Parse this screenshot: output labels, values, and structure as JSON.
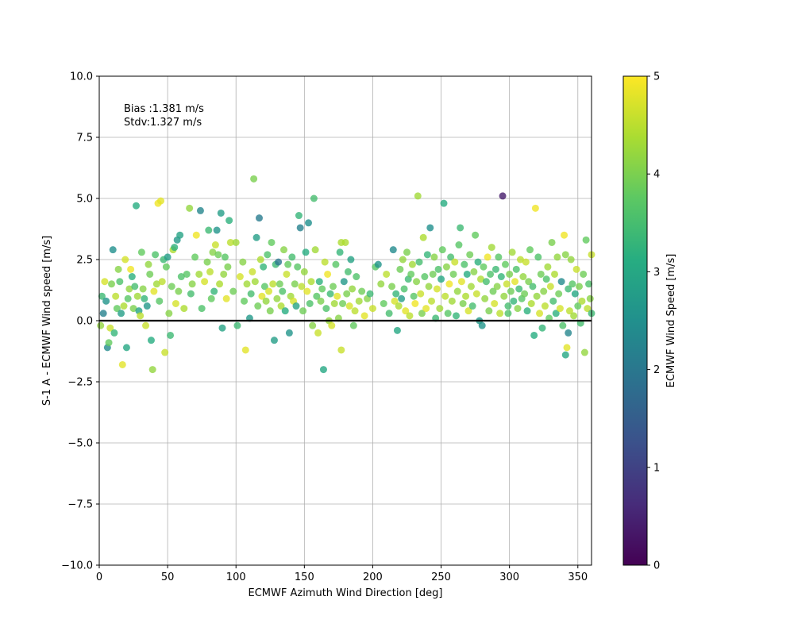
{
  "chart_data": {
    "type": "scatter",
    "title": "",
    "xlabel": "ECMWF Azimuth Wind Direction [deg]",
    "ylabel": "S-1 A - ECMWF Wind speed [m/s]",
    "xlim": [
      0,
      360
    ],
    "ylim": [
      -10,
      10
    ],
    "xticks": [
      "0",
      "50",
      "100",
      "150",
      "200",
      "250",
      "300",
      "350"
    ],
    "yticks": [
      "−10.0",
      "−7.5",
      "−5.0",
      "−2.5",
      "0.0",
      "2.5",
      "5.0",
      "7.5",
      "10.0"
    ],
    "grid": true,
    "reference_line_y": 0,
    "annotations": [
      "Bias :1.381 m/s",
      "Stdv:1.327 m/s"
    ],
    "colorbar": {
      "label": "ECMWF Wind Speed [m/s]",
      "range": [
        0,
        5
      ],
      "ticks": [
        "0",
        "1",
        "2",
        "3",
        "4",
        "5"
      ],
      "colormap": "viridis"
    },
    "points": [
      [
        1,
        -0.2,
        4.2
      ],
      [
        2,
        1.0,
        3.4
      ],
      [
        3,
        0.3,
        2.2
      ],
      [
        4,
        1.6,
        4.7
      ],
      [
        5,
        0.8,
        2.6
      ],
      [
        6,
        -1.1,
        2.4
      ],
      [
        7,
        -0.9,
        3.8
      ],
      [
        8,
        -0.3,
        4.6
      ],
      [
        9,
        1.5,
        4.0
      ],
      [
        10,
        2.9,
        2.5
      ],
      [
        11,
        -0.5,
        3.3
      ],
      [
        12,
        1.0,
        4.5
      ],
      [
        13,
        0.5,
        3.8
      ],
      [
        14,
        2.1,
        4.1
      ],
      [
        15,
        1.6,
        3.6
      ],
      [
        16,
        0.3,
        2.8
      ],
      [
        17,
        -1.8,
        4.8
      ],
      [
        18,
        0.6,
        4.4
      ],
      [
        19,
        2.5,
        4.7
      ],
      [
        20,
        -1.1,
        3.0
      ],
      [
        21,
        0.9,
        3.7
      ],
      [
        22,
        1.3,
        4.2
      ],
      [
        23,
        2.1,
        4.9
      ],
      [
        24,
        1.8,
        3.2
      ],
      [
        25,
        0.5,
        4.0
      ],
      [
        26,
        1.4,
        3.5
      ],
      [
        27,
        4.7,
        3.1
      ],
      [
        28,
        1.0,
        4.3
      ],
      [
        29,
        0.4,
        2.9
      ],
      [
        30,
        0.2,
        4.5
      ],
      [
        31,
        2.8,
        3.8
      ],
      [
        32,
        1.3,
        4.1
      ],
      [
        33,
        0.9,
        3.3
      ],
      [
        34,
        -0.2,
        4.6
      ],
      [
        35,
        0.6,
        2.7
      ],
      [
        36,
        2.3,
        4.2
      ],
      [
        37,
        1.9,
        3.9
      ],
      [
        38,
        -0.8,
        3.1
      ],
      [
        39,
        -2.0,
        4.2
      ],
      [
        40,
        1.2,
        4.8
      ],
      [
        41,
        2.7,
        3.6
      ],
      [
        42,
        1.5,
        4.3
      ],
      [
        43,
        4.8,
        4.9
      ],
      [
        44,
        0.8,
        3.7
      ],
      [
        45,
        4.9,
        4.8
      ],
      [
        46,
        1.6,
        4.5
      ],
      [
        47,
        2.5,
        3.4
      ],
      [
        48,
        -1.3,
        4.6
      ],
      [
        49,
        2.2,
        3.8
      ],
      [
        50,
        2.6,
        2.8
      ],
      [
        51,
        0.3,
        4.1
      ],
      [
        52,
        -0.6,
        3.4
      ],
      [
        53,
        1.4,
        3.9
      ],
      [
        54,
        2.9,
        4.4
      ],
      [
        55,
        3.0,
        3.2
      ],
      [
        56,
        0.7,
        4.7
      ],
      [
        57,
        3.3,
        2.7
      ],
      [
        58,
        1.2,
        4.0
      ],
      [
        59,
        3.5,
        2.9
      ],
      [
        60,
        1.8,
        3.6
      ],
      [
        62,
        0.5,
        4.4
      ],
      [
        64,
        1.9,
        3.7
      ],
      [
        66,
        4.6,
        4.2
      ],
      [
        67,
        1.1,
        3.5
      ],
      [
        68,
        1.5,
        4.1
      ],
      [
        70,
        2.6,
        3.8
      ],
      [
        71,
        3.5,
        4.9
      ],
      [
        73,
        1.9,
        4.3
      ],
      [
        74,
        4.5,
        2.3
      ],
      [
        75,
        0.5,
        3.6
      ],
      [
        77,
        1.6,
        4.7
      ],
      [
        79,
        2.4,
        4.0
      ],
      [
        80,
        3.7,
        3.4
      ],
      [
        81,
        2.0,
        4.5
      ],
      [
        82,
        0.9,
        3.8
      ],
      [
        83,
        2.8,
        4.1
      ],
      [
        84,
        1.2,
        3.3
      ],
      [
        85,
        3.1,
        4.6
      ],
      [
        86,
        3.7,
        2.6
      ],
      [
        87,
        2.7,
        3.9
      ],
      [
        88,
        1.5,
        4.4
      ],
      [
        89,
        4.4,
        2.8
      ],
      [
        90,
        -0.3,
        2.9
      ],
      [
        91,
        1.9,
        4.2
      ],
      [
        92,
        2.6,
        3.7
      ],
      [
        93,
        0.9,
        4.8
      ],
      [
        94,
        2.2,
        4.0
      ],
      [
        95,
        4.1,
        3.2
      ],
      [
        96,
        3.2,
        4.5
      ],
      [
        98,
        1.2,
        3.9
      ],
      [
        100,
        3.2,
        4.3
      ],
      [
        101,
        -0.2,
        3.4
      ],
      [
        103,
        1.8,
        4.7
      ],
      [
        105,
        2.4,
        4.1
      ],
      [
        106,
        0.8,
        3.8
      ],
      [
        107,
        -1.2,
        4.8
      ],
      [
        108,
        1.5,
        4.3
      ],
      [
        110,
        0.1,
        2.7
      ],
      [
        111,
        1.1,
        3.5
      ],
      [
        112,
        2.0,
        4.6
      ],
      [
        113,
        5.8,
        4.0
      ],
      [
        114,
        1.6,
        4.3
      ],
      [
        115,
        3.4,
        2.8
      ],
      [
        116,
        0.6,
        3.9
      ],
      [
        117,
        4.2,
        2.1
      ],
      [
        118,
        2.5,
        4.4
      ],
      [
        119,
        1.0,
        4.8
      ],
      [
        120,
        2.2,
        3.3
      ],
      [
        121,
        1.4,
        3.7
      ],
      [
        122,
        0.8,
        4.2
      ],
      [
        123,
        2.7,
        3.6
      ],
      [
        124,
        1.2,
        4.7
      ],
      [
        125,
        0.4,
        4.0
      ],
      [
        126,
        3.2,
        3.8
      ],
      [
        127,
        1.5,
        4.5
      ],
      [
        128,
        -0.8,
        2.8
      ],
      [
        129,
        2.3,
        3.4
      ],
      [
        130,
        0.9,
        4.2
      ],
      [
        131,
        2.4,
        2.0
      ],
      [
        132,
        1.5,
        3.9
      ],
      [
        133,
        0.6,
        4.4
      ],
      [
        134,
        1.2,
        3.6
      ],
      [
        135,
        2.9,
        4.1
      ],
      [
        136,
        0.4,
        3.1
      ],
      [
        137,
        1.9,
        4.6
      ],
      [
        138,
        2.3,
        3.8
      ],
      [
        139,
        -0.5,
        2.6
      ],
      [
        140,
        1.0,
        4.3
      ],
      [
        141,
        2.6,
        3.5
      ],
      [
        142,
        0.8,
        4.7
      ],
      [
        143,
        1.5,
        4.0
      ],
      [
        144,
        0.6,
        2.9
      ],
      [
        145,
        2.2,
        3.7
      ],
      [
        146,
        4.3,
        3.3
      ],
      [
        147,
        3.8,
        2.2
      ],
      [
        148,
        1.4,
        4.5
      ],
      [
        149,
        0.4,
        3.9
      ],
      [
        150,
        2.0,
        4.2
      ],
      [
        151,
        2.8,
        3.1
      ],
      [
        152,
        1.2,
        4.8
      ],
      [
        153,
        4.0,
        2.5
      ],
      [
        154,
        0.7,
        3.6
      ],
      [
        155,
        1.6,
        4.4
      ],
      [
        156,
        -0.2,
        4.1
      ],
      [
        157,
        5.0,
        3.5
      ],
      [
        158,
        2.9,
        4.3
      ],
      [
        159,
        1.0,
        3.7
      ],
      [
        160,
        -0.5,
        4.6
      ],
      [
        161,
        1.6,
        3.2
      ],
      [
        162,
        0.8,
        4.0
      ],
      [
        163,
        1.3,
        3.8
      ],
      [
        164,
        -2.0,
        3.0
      ],
      [
        165,
        2.4,
        4.5
      ],
      [
        166,
        0.5,
        3.6
      ],
      [
        167,
        1.9,
        4.9
      ],
      [
        168,
        0.0,
        4.2
      ],
      [
        169,
        1.1,
        3.4
      ],
      [
        170,
        -0.2,
        4.7
      ],
      [
        171,
        1.4,
        3.9
      ],
      [
        172,
        0.7,
        4.3
      ],
      [
        173,
        2.3,
        3.7
      ],
      [
        174,
        1.0,
        4.8
      ],
      [
        175,
        0.1,
        4.1
      ],
      [
        176,
        2.8,
        3.3
      ],
      [
        177,
        -1.2,
        4.6
      ],
      [
        178,
        0.7,
        3.9
      ],
      [
        179,
        1.6,
        2.7
      ],
      [
        180,
        3.2,
        4.4
      ],
      [
        181,
        1.1,
        4.0
      ],
      [
        182,
        2.0,
        3.5
      ],
      [
        183,
        0.6,
        4.7
      ],
      [
        184,
        2.5,
        2.9
      ],
      [
        185,
        1.3,
        4.2
      ],
      [
        186,
        -0.2,
        3.8
      ],
      [
        187,
        0.4,
        4.5
      ],
      [
        188,
        1.8,
        3.6
      ],
      [
        190,
        0.8,
        4.3
      ],
      [
        192,
        1.2,
        3.9
      ],
      [
        194,
        0.2,
        4.8
      ],
      [
        196,
        0.9,
        4.1
      ],
      [
        198,
        1.1,
        3.4
      ],
      [
        200,
        0.5,
        4.6
      ],
      [
        202,
        2.2,
        3.7
      ],
      [
        204,
        2.3,
        2.6
      ],
      [
        206,
        1.5,
        4.2
      ],
      [
        208,
        0.7,
        3.8
      ],
      [
        210,
        1.9,
        4.5
      ],
      [
        212,
        0.3,
        3.5
      ],
      [
        214,
        1.4,
        4.0
      ],
      [
        215,
        2.9,
        2.4
      ],
      [
        216,
        0.8,
        4.7
      ],
      [
        217,
        1.1,
        3.3
      ],
      [
        218,
        -0.4,
        3.0
      ],
      [
        219,
        0.6,
        4.4
      ],
      [
        220,
        2.1,
        3.9
      ],
      [
        221,
        0.9,
        2.8
      ],
      [
        222,
        2.5,
        4.2
      ],
      [
        223,
        1.3,
        3.6
      ],
      [
        224,
        0.4,
        4.8
      ],
      [
        225,
        2.8,
        4.0
      ],
      [
        226,
        1.7,
        3.4
      ],
      [
        227,
        0.2,
        4.5
      ],
      [
        228,
        1.9,
        3.8
      ],
      [
        229,
        2.3,
        4.3
      ],
      [
        230,
        1.0,
        3.7
      ],
      [
        231,
        0.7,
        4.9
      ],
      [
        232,
        1.6,
        4.1
      ],
      [
        233,
        5.1,
        4.3
      ],
      [
        234,
        2.4,
        3.5
      ],
      [
        235,
        1.1,
        4.6
      ],
      [
        236,
        0.3,
        4.0
      ],
      [
        237,
        3.4,
        4.4
      ],
      [
        238,
        1.8,
        3.7
      ],
      [
        239,
        0.5,
        4.8
      ],
      [
        240,
        2.7,
        3.3
      ],
      [
        241,
        1.4,
        4.2
      ],
      [
        242,
        3.8,
        2.5
      ],
      [
        243,
        0.8,
        4.5
      ],
      [
        244,
        1.9,
        3.9
      ],
      [
        245,
        2.6,
        4.1
      ],
      [
        246,
        0.1,
        3.4
      ],
      [
        247,
        1.3,
        4.7
      ],
      [
        248,
        2.1,
        3.6
      ],
      [
        249,
        0.5,
        4.3
      ],
      [
        250,
        1.7,
        3.0
      ],
      [
        251,
        2.9,
        3.8
      ],
      [
        252,
        4.8,
        3.1
      ],
      [
        253,
        1.0,
        4.5
      ],
      [
        254,
        2.2,
        4.1
      ],
      [
        255,
        0.3,
        3.7
      ],
      [
        256,
        1.5,
        4.9
      ],
      [
        257,
        2.6,
        3.5
      ],
      [
        258,
        0.8,
        4.3
      ],
      [
        259,
        1.9,
        3.9
      ],
      [
        260,
        2.4,
        4.6
      ],
      [
        261,
        0.2,
        3.3
      ],
      [
        262,
        1.2,
        4.2
      ],
      [
        263,
        3.1,
        3.7
      ],
      [
        264,
        3.8,
        3.4
      ],
      [
        265,
        1.6,
        4.8
      ],
      [
        266,
        0.7,
        4.0
      ],
      [
        267,
        2.3,
        3.6
      ],
      [
        268,
        1.0,
        4.4
      ],
      [
        269,
        1.9,
        3.1
      ],
      [
        270,
        0.4,
        4.7
      ],
      [
        271,
        2.7,
        3.9
      ],
      [
        272,
        1.4,
        4.3
      ],
      [
        273,
        0.6,
        3.5
      ],
      [
        274,
        2.0,
        4.1
      ],
      [
        275,
        3.5,
        3.8
      ],
      [
        276,
        1.1,
        4.6
      ],
      [
        277,
        2.4,
        3.2
      ],
      [
        278,
        0.0,
        2.7
      ],
      [
        279,
        1.7,
        4.4
      ],
      [
        280,
        -0.2,
        2.6
      ],
      [
        281,
        2.2,
        3.8
      ],
      [
        282,
        0.9,
        4.2
      ],
      [
        283,
        1.6,
        3.5
      ],
      [
        284,
        2.6,
        4.9
      ],
      [
        285,
        0.4,
        4.0
      ],
      [
        286,
        1.9,
        3.6
      ],
      [
        287,
        3.0,
        4.3
      ],
      [
        288,
        1.2,
        3.9
      ],
      [
        289,
        0.7,
        4.7
      ],
      [
        290,
        2.1,
        3.4
      ],
      [
        291,
        1.4,
        4.1
      ],
      [
        292,
        2.6,
        3.7
      ],
      [
        293,
        0.3,
        4.5
      ],
      [
        294,
        1.8,
        3.3
      ],
      [
        295,
        5.1,
        0.4
      ],
      [
        296,
        1.0,
        4.2
      ],
      [
        297,
        2.3,
        3.8
      ],
      [
        298,
        1.5,
        4.6
      ],
      [
        299,
        0.6,
        3.5
      ],
      [
        300,
        1.9,
        4.0
      ],
      [
        301,
        1.2,
        3.9
      ],
      [
        302,
        2.8,
        4.3
      ],
      [
        303,
        0.8,
        3.3
      ],
      [
        304,
        1.6,
        4.8
      ],
      [
        305,
        2.1,
        3.6
      ],
      [
        306,
        0.5,
        4.1
      ],
      [
        307,
        1.3,
        3.4
      ],
      [
        308,
        2.5,
        4.5
      ],
      [
        309,
        0.9,
        3.7
      ],
      [
        310,
        1.8,
        4.2
      ],
      [
        311,
        1.1,
        3.9
      ],
      [
        312,
        2.4,
        4.6
      ],
      [
        313,
        0.4,
        3.2
      ],
      [
        314,
        1.6,
        4.0
      ],
      [
        315,
        2.9,
        3.8
      ],
      [
        316,
        0.7,
        4.4
      ],
      [
        317,
        1.4,
        3.5
      ],
      [
        318,
        -0.6,
        3.1
      ],
      [
        319,
        4.6,
        4.9
      ],
      [
        320,
        1.0,
        4.2
      ],
      [
        321,
        2.6,
        3.6
      ],
      [
        322,
        0.3,
        4.7
      ],
      [
        323,
        1.9,
        3.9
      ],
      [
        324,
        -0.3,
        3.3
      ],
      [
        325,
        1.2,
        4.1
      ],
      [
        326,
        0.6,
        4.5
      ],
      [
        327,
        1.7,
        3.6
      ],
      [
        328,
        2.2,
        4.3
      ],
      [
        329,
        0.1,
        3.8
      ],
      [
        330,
        1.4,
        4.6
      ],
      [
        331,
        3.2,
        4.0
      ],
      [
        332,
        0.8,
        3.5
      ],
      [
        333,
        1.9,
        4.4
      ],
      [
        334,
        0.3,
        3.2
      ],
      [
        335,
        2.6,
        4.2
      ],
      [
        336,
        1.1,
        3.9
      ],
      [
        337,
        0.5,
        4.7
      ],
      [
        338,
        1.6,
        2.4
      ],
      [
        339,
        -0.2,
        3.6
      ],
      [
        340,
        3.5,
        4.9
      ],
      [
        341,
        2.7,
        4.1
      ],
      [
        342,
        -1.1,
        4.8
      ],
      [
        343,
        1.3,
        3.4
      ],
      [
        344,
        0.4,
        4.5
      ],
      [
        345,
        2.5,
        4.2
      ],
      [
        346,
        1.5,
        3.7
      ],
      [
        347,
        0.2,
        4.3
      ],
      [
        348,
        1.1,
        3.0
      ],
      [
        349,
        2.1,
        4.6
      ],
      [
        350,
        0.6,
        3.8
      ],
      [
        351,
        1.4,
        4.0
      ],
      [
        352,
        -0.1,
        3.5
      ],
      [
        353,
        0.8,
        4.4
      ],
      [
        354,
        1.9,
        3.9
      ],
      [
        355,
        -1.3,
        4.2
      ],
      [
        356,
        3.3,
        3.8
      ],
      [
        357,
        0.5,
        4.5
      ],
      [
        358,
        1.5,
        3.6
      ],
      [
        359,
        0.9,
        4.1
      ],
      [
        360,
        0.3,
        3.4
      ],
      [
        360,
        2.7,
        4.6
      ],
      [
        343,
        -0.5,
        2.3
      ],
      [
        341,
        -1.4,
        3.0
      ],
      [
        299,
        0.3,
        3.6
      ],
      [
        177,
        3.2,
        4.4
      ]
    ]
  }
}
